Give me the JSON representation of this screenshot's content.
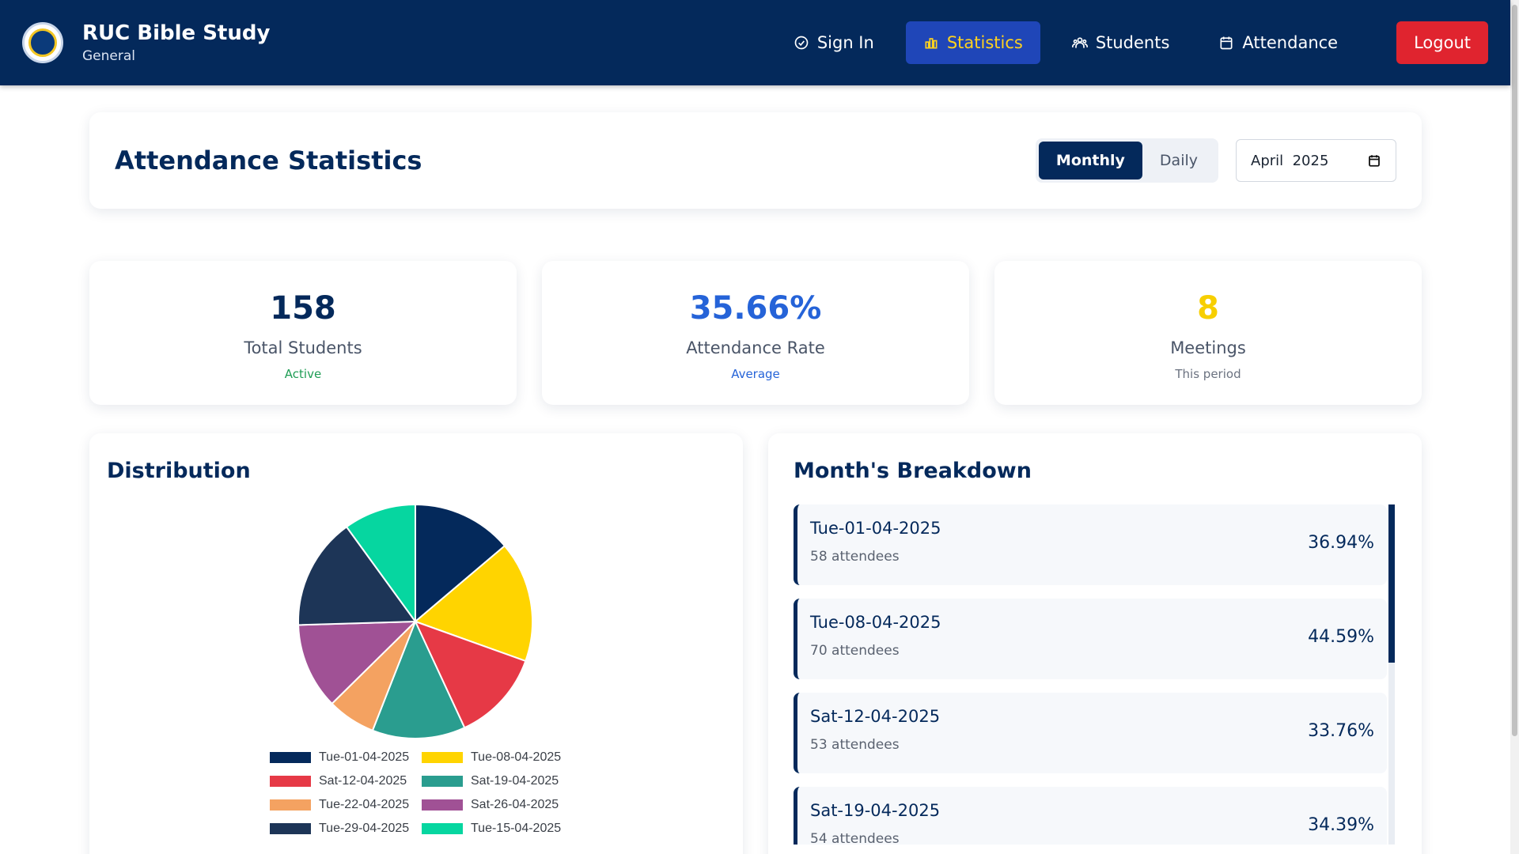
{
  "header": {
    "title": "RUC Bible Study",
    "subtitle": "General",
    "nav": [
      {
        "label": "Sign In",
        "icon": "check-circle-icon",
        "active": false
      },
      {
        "label": "Statistics",
        "icon": "bar-chart-icon",
        "active": true
      },
      {
        "label": "Students",
        "icon": "users-icon",
        "active": false
      },
      {
        "label": "Attendance",
        "icon": "calendar-icon",
        "active": false
      }
    ],
    "logout_label": "Logout"
  },
  "page": {
    "title": "Attendance Statistics",
    "toggle": {
      "monthly": "Monthly",
      "daily": "Daily",
      "selected": "Monthly"
    },
    "month_value": "April  2025"
  },
  "stats": {
    "total_students": {
      "value": "158",
      "label": "Total Students",
      "sub": "Active",
      "color": "#04295b",
      "sub_color": "#1f9d55"
    },
    "attendance_rate": {
      "value": "35.66%",
      "label": "Attendance Rate",
      "sub": "Average",
      "color": "#2563d8",
      "sub_color": "#2563d8"
    },
    "meetings": {
      "value": "8",
      "label": "Meetings",
      "sub": "This period",
      "color": "#f7cf00",
      "sub_color": "#6b7280"
    }
  },
  "distribution": {
    "title": "Distribution",
    "chart_data": {
      "type": "pie",
      "labels": [
        "Tue-01-04-2025",
        "Tue-08-04-2025",
        "Sat-12-04-2025",
        "Sat-19-04-2025",
        "Tue-22-04-2025",
        "Sat-26-04-2025",
        "Tue-29-04-2025",
        "Tue-15-04-2025"
      ],
      "values": [
        58,
        70,
        53,
        54,
        28,
        50,
        65,
        42
      ],
      "colors": [
        "#04295b",
        "#ffd400",
        "#e63946",
        "#2a9d8f",
        "#f4a261",
        "#a05195",
        "#1d3557",
        "#06d6a0"
      ],
      "legend_position": "bottom"
    }
  },
  "breakdown": {
    "title": "Month's Breakdown",
    "items": [
      {
        "date": "Tue-01-04-2025",
        "attendees": "58 attendees",
        "pct": "36.94%"
      },
      {
        "date": "Tue-08-04-2025",
        "attendees": "70 attendees",
        "pct": "44.59%"
      },
      {
        "date": "Sat-12-04-2025",
        "attendees": "53 attendees",
        "pct": "33.76%"
      },
      {
        "date": "Sat-19-04-2025",
        "attendees": "54 attendees",
        "pct": "34.39%"
      }
    ]
  }
}
